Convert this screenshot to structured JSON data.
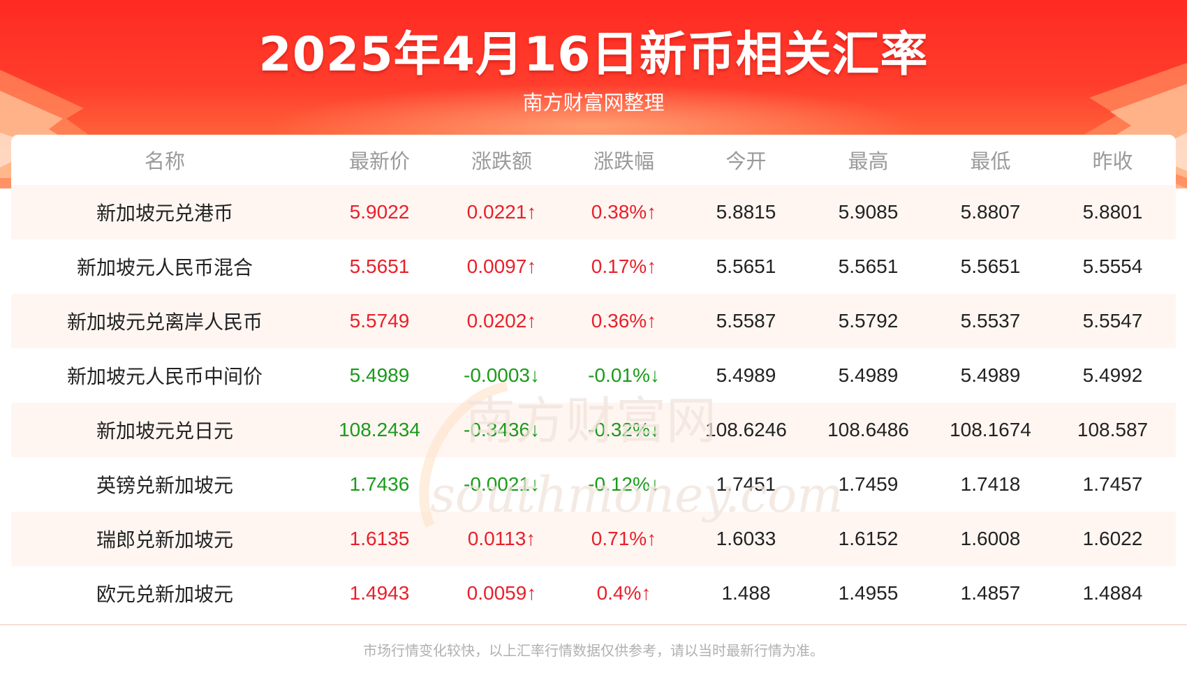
{
  "header": {
    "title": "2025年4月16日新币相关汇率",
    "subtitle": "南方财富网整理"
  },
  "table": {
    "columns": [
      "名称",
      "最新价",
      "涨跌额",
      "涨跌幅",
      "今开",
      "最高",
      "最低",
      "昨收"
    ],
    "rows": [
      {
        "name": "新加坡元兑港币",
        "latest": "5.9022",
        "change": "0.0221↑",
        "pct": "0.38%↑",
        "open": "5.8815",
        "high": "5.9085",
        "low": "5.8807",
        "prev": "5.8801",
        "trend": "up"
      },
      {
        "name": "新加坡元人民币混合",
        "latest": "5.5651",
        "change": "0.0097↑",
        "pct": "0.17%↑",
        "open": "5.5651",
        "high": "5.5651",
        "low": "5.5651",
        "prev": "5.5554",
        "trend": "up"
      },
      {
        "name": "新加坡元兑离岸人民币",
        "latest": "5.5749",
        "change": "0.0202↑",
        "pct": "0.36%↑",
        "open": "5.5587",
        "high": "5.5792",
        "low": "5.5537",
        "prev": "5.5547",
        "trend": "up"
      },
      {
        "name": "新加坡元人民币中间价",
        "latest": "5.4989",
        "change": "-0.0003↓",
        "pct": "-0.01%↓",
        "open": "5.4989",
        "high": "5.4989",
        "low": "5.4989",
        "prev": "5.4992",
        "trend": "down"
      },
      {
        "name": "新加坡元兑日元",
        "latest": "108.2434",
        "change": "-0.3436↓",
        "pct": "-0.32%↓",
        "open": "108.6246",
        "high": "108.6486",
        "low": "108.1674",
        "prev": "108.587",
        "trend": "down"
      },
      {
        "name": "英镑兑新加坡元",
        "latest": "1.7436",
        "change": "-0.0021↓",
        "pct": "-0.12%↓",
        "open": "1.7451",
        "high": "1.7459",
        "low": "1.7418",
        "prev": "1.7457",
        "trend": "down"
      },
      {
        "name": "瑞郎兑新加坡元",
        "latest": "1.6135",
        "change": "0.0113↑",
        "pct": "0.71%↑",
        "open": "1.6033",
        "high": "1.6152",
        "low": "1.6008",
        "prev": "1.6022",
        "trend": "up"
      },
      {
        "name": "欧元兑新加坡元",
        "latest": "1.4943",
        "change": "0.0059↑",
        "pct": "0.4%↑",
        "open": "1.488",
        "high": "1.4955",
        "low": "1.4857",
        "prev": "1.4884",
        "trend": "up"
      }
    ]
  },
  "watermark": {
    "cn": "南方财富网",
    "en": "southmoney.com"
  },
  "footer": {
    "note": "市场行情变化较快，以上汇率行情数据仅供参考，请以当时最新行情为准。"
  },
  "colors": {
    "up": "#e8202a",
    "down": "#1a9a1a",
    "banner": "#ff2a22"
  }
}
